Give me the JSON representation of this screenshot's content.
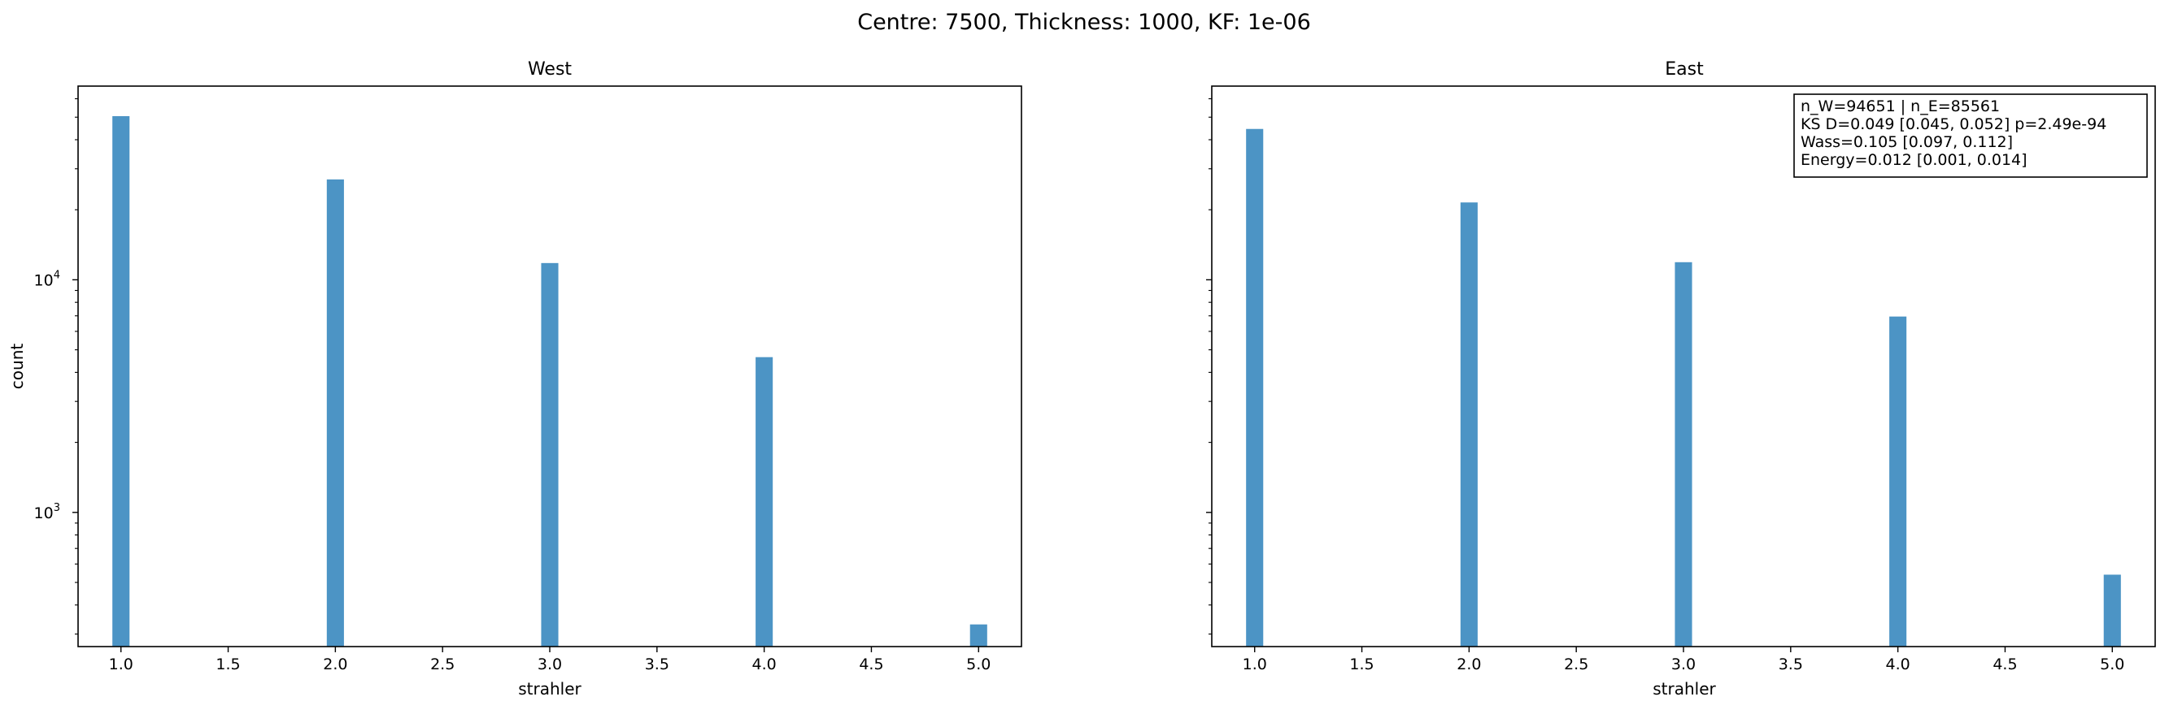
{
  "figure_title": "Centre: 7500, Thickness: 1000, KF: 1e-06",
  "colors": {
    "bar": "#4c94c5",
    "axis": "#000000",
    "background": "#ffffff"
  },
  "panels": [
    {
      "title": "West",
      "xlabel": "strahler",
      "ylabel": "count",
      "annotation": null
    },
    {
      "title": "East",
      "xlabel": "strahler",
      "ylabel": "",
      "annotation": [
        "n_W=94651 | n_E=85561",
        "KS D=0.049 [0.045, 0.052]  p=2.49e-94",
        "Wass=0.105 [0.097, 0.112]",
        "Energy=0.012 [0.001, 0.014]"
      ]
    }
  ],
  "chart_data": [
    {
      "type": "bar",
      "title": "West",
      "xlabel": "strahler",
      "ylabel": "count",
      "yscale": "log",
      "xlim": [
        0.8,
        5.2
      ],
      "ylim": [
        265,
        68000
      ],
      "xticks": [
        "1.0",
        "1.5",
        "2.0",
        "2.5",
        "3.0",
        "3.5",
        "4.0",
        "4.5",
        "5.0"
      ],
      "yticks": [
        {
          "value": 1000,
          "label": "10",
          "exp": "3"
        },
        {
          "value": 10000,
          "label": "10",
          "exp": "4"
        }
      ],
      "bar_width": 0.08,
      "x": [
        1.0,
        2.0,
        3.0,
        4.0,
        5.0
      ],
      "values": [
        50500,
        27000,
        11800,
        4650,
        330
      ]
    },
    {
      "type": "bar",
      "title": "East",
      "xlabel": "strahler",
      "ylabel": "",
      "yscale": "log",
      "xlim": [
        0.8,
        5.2
      ],
      "ylim": [
        265,
        68000
      ],
      "xticks": [
        "1.0",
        "1.5",
        "2.0",
        "2.5",
        "3.0",
        "3.5",
        "4.0",
        "4.5",
        "5.0"
      ],
      "yticks": [
        {
          "value": 1000,
          "label": "",
          "exp": ""
        },
        {
          "value": 10000,
          "label": "",
          "exp": ""
        }
      ],
      "bar_width": 0.08,
      "x": [
        1.0,
        2.0,
        3.0,
        4.0,
        5.0
      ],
      "values": [
        44500,
        21500,
        11900,
        6950,
        540
      ]
    }
  ]
}
